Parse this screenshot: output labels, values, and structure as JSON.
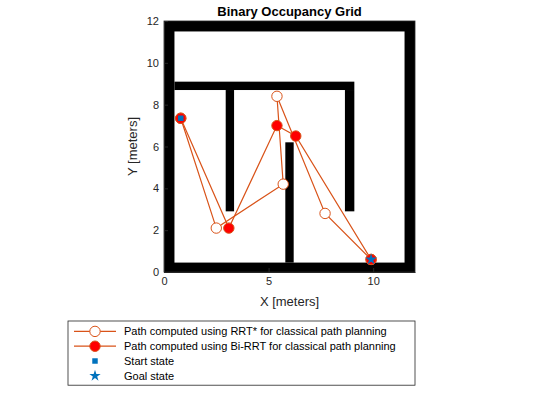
{
  "chart_data": {
    "type": "line",
    "title": "Binary Occupancy Grid",
    "x_label": "X [meters]",
    "y_label": "Y [meters]",
    "xlim": [
      0,
      12
    ],
    "ylim": [
      0,
      12
    ],
    "xticks": [
      0,
      5,
      10
    ],
    "yticks": [
      0,
      2,
      4,
      6,
      8,
      10,
      12
    ],
    "obstacles": [
      [
        0,
        0,
        0.5,
        12
      ],
      [
        11.5,
        0,
        12,
        12
      ],
      [
        0,
        0,
        12,
        0.45
      ],
      [
        0,
        11.5,
        12,
        12
      ],
      [
        0.5,
        8.7,
        9.1,
        9.1
      ],
      [
        2.95,
        2.9,
        3.35,
        8.7
      ],
      [
        8.65,
        2.9,
        9.1,
        8.7
      ],
      [
        5.8,
        0.45,
        6.2,
        6.2
      ]
    ],
    "legend": "bottom",
    "series": [
      {
        "name": "Path computed using RRT* for classical path planning",
        "color": "#d95319",
        "marker": "open-circle",
        "line_style": "solid",
        "x": [
          0.8,
          2.5,
          5.7,
          5.4,
          7.7,
          9.9
        ],
        "values": [
          7.35,
          2.1,
          4.2,
          8.4,
          2.8,
          0.6
        ]
      },
      {
        "name": "Path computed using Bi-RRT for classical path planning",
        "color": "#d95319",
        "marker": "filled-circle",
        "line_style": "solid",
        "x": [
          0.8,
          3.1,
          5.4,
          6.3,
          9.9
        ],
        "values": [
          7.35,
          2.1,
          7.0,
          6.5,
          0.6
        ]
      },
      {
        "name": "Start state",
        "color": "#0072bd",
        "marker": "square",
        "line_style": "none",
        "x": [
          0.8
        ],
        "values": [
          7.35
        ]
      },
      {
        "name": "Goal state",
        "color": "#0072bd",
        "marker": "star",
        "line_style": "none",
        "x": [
          9.9
        ],
        "values": [
          0.6
        ]
      }
    ]
  }
}
